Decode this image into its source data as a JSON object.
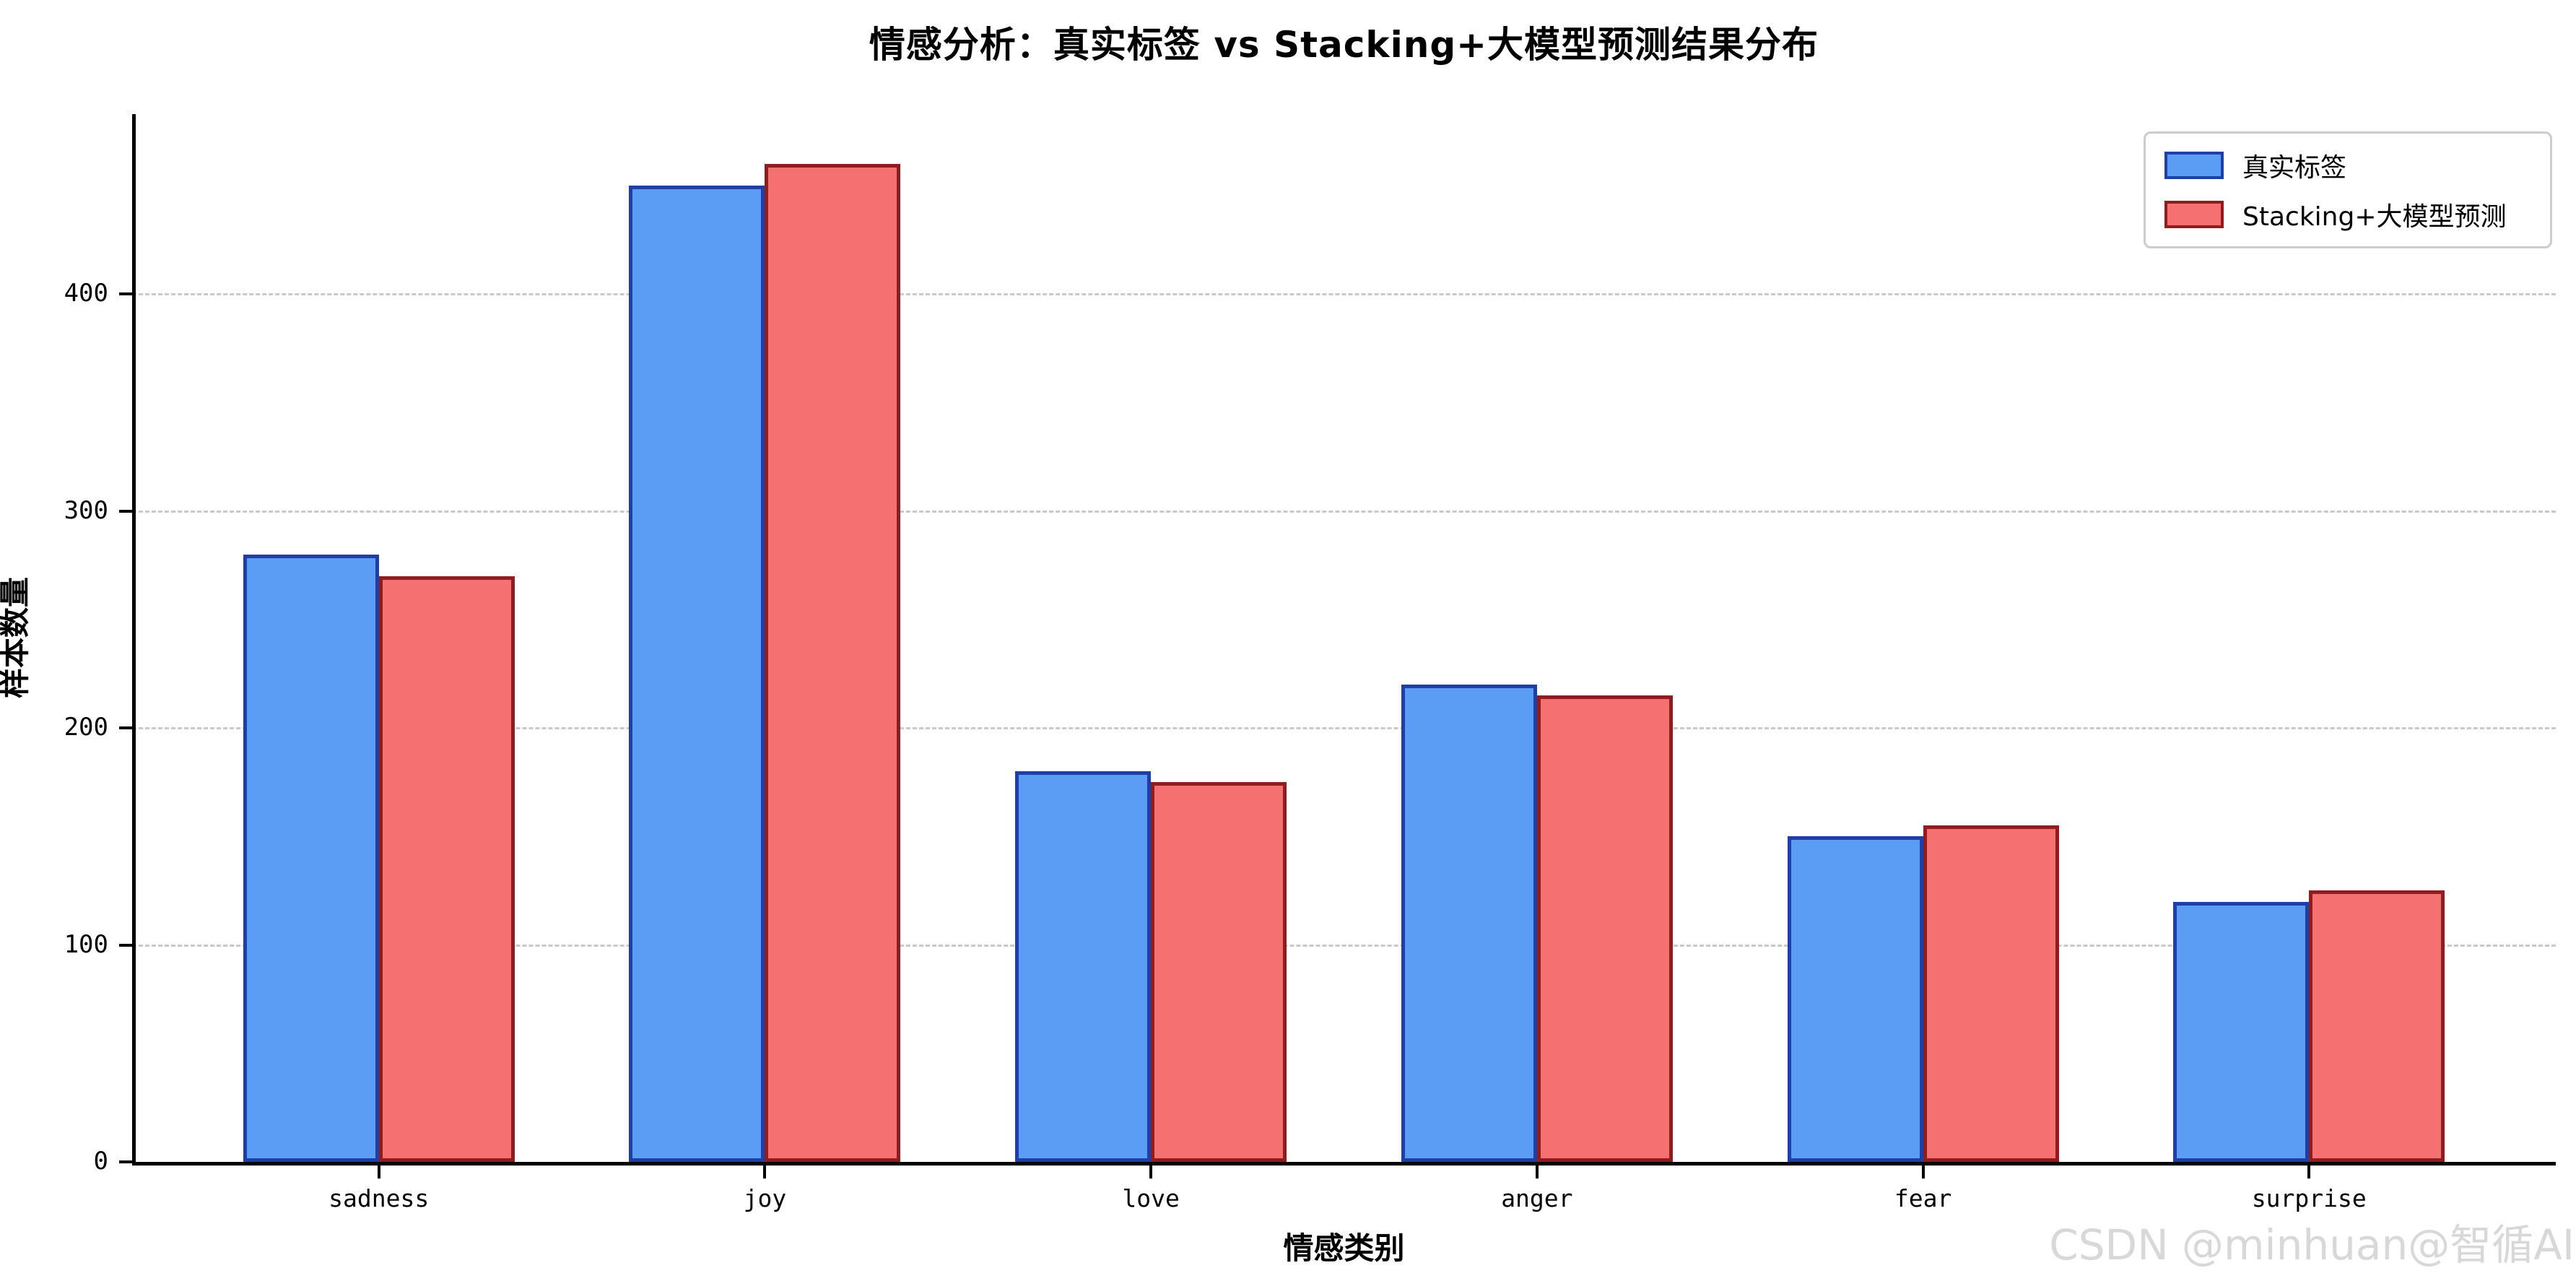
{
  "title": "情感分析：真实标签 vs Stacking+大模型预测结果分布",
  "watermark": "CSDN @minhuan@智循AI",
  "legend": {
    "items": [
      {
        "label": "真实标签"
      },
      {
        "label": "Stacking+大模型预测"
      }
    ]
  },
  "chart_data": {
    "type": "bar",
    "title": "情感分析：真实标签 vs Stacking+大模型预测结果分布",
    "xlabel": "情感类别",
    "ylabel": "样本数量",
    "categories": [
      "sadness",
      "joy",
      "love",
      "anger",
      "fear",
      "surprise"
    ],
    "series": [
      {
        "name": "真实标签",
        "fill_color": "#5B9CF5",
        "edge_color": "#1E3FA5",
        "values": [
          280,
          450,
          180,
          220,
          150,
          120
        ]
      },
      {
        "name": "Stacking+大模型预测",
        "fill_color": "#F57070",
        "edge_color": "#8F1D20",
        "values": [
          270,
          460,
          175,
          215,
          155,
          125
        ]
      }
    ],
    "yticks": [
      0,
      100,
      200,
      300,
      400
    ],
    "ylim": [
      0,
      483
    ],
    "grid": "horizontal dashed",
    "grid_color": "#C9C9C9",
    "legend_position": "upper right",
    "axis_color": "#000000",
    "background_color": "#FFFFFF"
  }
}
